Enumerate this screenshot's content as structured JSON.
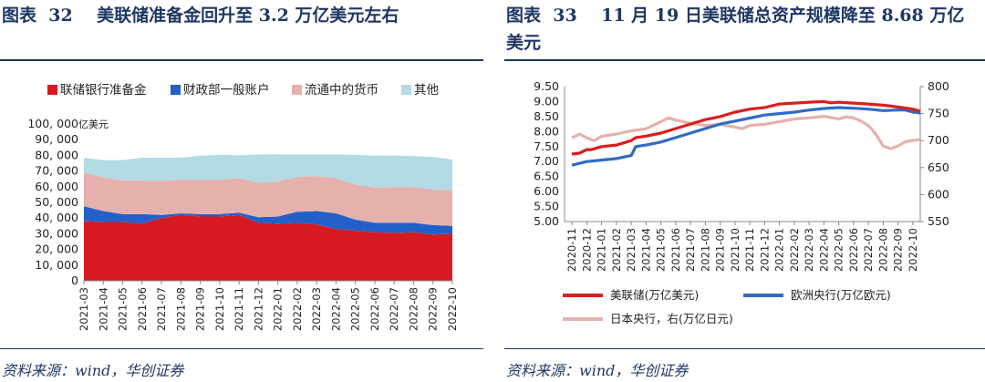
{
  "left": {
    "title": "图表  32    美联储准备金回升至 3.2 万亿美元左右",
    "source": "资料来源：wind，华创证券",
    "chart_data": {
      "type": "area",
      "stacked": true,
      "unit_label": "亿美元",
      "legend": [
        "联储银行准备金",
        "财政部一般账户",
        "流通中的货币",
        "其他"
      ],
      "colors": [
        "#d71a21",
        "#2361c8",
        "#e6b1ad",
        "#b2dbe3"
      ],
      "ylim": [
        0,
        100000
      ],
      "yticks": [
        "0",
        "10, 000",
        "20, 000",
        "30, 000",
        "40, 000",
        "50, 000",
        "60, 000",
        "70, 000",
        "80, 000",
        "90, 000",
        "100, 000"
      ],
      "categories": [
        "2021-03",
        "2021-04",
        "2021-05",
        "2021-06",
        "2021-07",
        "2021-08",
        "2021-09",
        "2021-10",
        "2021-11",
        "2021-12",
        "2022-01",
        "2022-02",
        "2022-03",
        "2022-04",
        "2022-05",
        "2022-06",
        "2022-07",
        "2022-08",
        "2022-09",
        "2022-10"
      ],
      "series": [
        {
          "name": "联储银行准备金",
          "values": [
            38000,
            37500,
            37500,
            36500,
            40000,
            42000,
            41000,
            41000,
            42000,
            37000,
            36500,
            37000,
            36000,
            33000,
            32000,
            31000,
            30500,
            31000,
            29500,
            30000
          ]
        },
        {
          "name": "财政部一般账户",
          "values": [
            9500,
            7000,
            5000,
            6000,
            2000,
            1000,
            1500,
            1500,
            1500,
            3500,
            4500,
            7000,
            8500,
            10000,
            7000,
            6000,
            6500,
            6000,
            6000,
            5000
          ]
        },
        {
          "name": "流通中的货币",
          "values": [
            21500,
            21500,
            21500,
            21500,
            21500,
            21700,
            21800,
            21900,
            22000,
            22100,
            22200,
            22300,
            22300,
            22400,
            22400,
            22500,
            22600,
            22600,
            22700,
            22800
          ]
        },
        {
          "name": "其他",
          "values": [
            9500,
            11000,
            13000,
            14500,
            15000,
            13800,
            15500,
            16000,
            14500,
            18000,
            17500,
            14200,
            13800,
            15200,
            18900,
            20400,
            20300,
            19900,
            20800,
            19500
          ]
        }
      ]
    }
  },
  "right": {
    "title": "图表  33    11 月 19 日美联储总资产规模降至 8.68 万亿美元",
    "source": "资料来源：wind，华创证券",
    "chart_data": {
      "type": "line",
      "y_left": {
        "ylim": [
          5.0,
          9.5
        ],
        "ticks": [
          "5.00",
          "5.50",
          "6.00",
          "6.50",
          "7.00",
          "7.50",
          "8.00",
          "8.50",
          "9.00",
          "9.50"
        ]
      },
      "y_right": {
        "ylim": [
          550,
          800
        ],
        "ticks": [
          "550",
          "600",
          "650",
          "700",
          "750",
          "800"
        ]
      },
      "categories": [
        "2020-11",
        "2020-12",
        "2021-01",
        "2021-02",
        "2021-03",
        "2021-04",
        "2021-05",
        "2021-06",
        "2021-07",
        "2021-08",
        "2021-09",
        "2021-10",
        "2021-11",
        "2021-12",
        "2022-01",
        "2022-02",
        "2022-03",
        "2022-04",
        "2022-05",
        "2022-06",
        "2022-07",
        "2022-08",
        "2022-09",
        "2022-10"
      ],
      "series": [
        {
          "name": "美联储(万亿美元)",
          "axis": "left",
          "color": "#d9201f",
          "x": [
            0,
            0.5,
            1,
            1.3,
            2,
            3,
            4,
            4.3,
            5,
            6,
            7,
            8,
            9,
            10,
            11,
            12,
            13,
            14,
            15,
            16,
            17,
            17.5,
            18,
            19,
            20,
            21,
            22,
            23,
            23.5
          ],
          "values": [
            7.25,
            7.28,
            7.4,
            7.4,
            7.5,
            7.55,
            7.7,
            7.8,
            7.85,
            7.95,
            8.1,
            8.25,
            8.4,
            8.5,
            8.65,
            8.75,
            8.8,
            8.92,
            8.95,
            8.98,
            9.0,
            8.96,
            8.98,
            8.95,
            8.92,
            8.88,
            8.82,
            8.75,
            8.68
          ]
        },
        {
          "name": "欧洲央行(万亿欧元)",
          "axis": "left",
          "color": "#2f6bc6",
          "x": [
            0,
            1,
            2,
            3,
            4,
            4.3,
            5,
            6,
            7,
            8,
            9,
            10,
            11,
            12,
            13,
            14,
            15,
            16,
            17,
            18,
            19,
            20,
            21,
            22,
            22.5,
            23,
            23.5
          ],
          "values": [
            6.88,
            7.0,
            7.05,
            7.1,
            7.2,
            7.5,
            7.55,
            7.65,
            7.8,
            7.95,
            8.1,
            8.25,
            8.35,
            8.45,
            8.55,
            8.6,
            8.65,
            8.72,
            8.77,
            8.8,
            8.78,
            8.75,
            8.7,
            8.72,
            8.72,
            8.65,
            8.62
          ]
        },
        {
          "name": "日本央行，右(万亿日元)",
          "axis": "right",
          "color": "#e6b1ad",
          "x": [
            0,
            0.5,
            1,
            1.5,
            2,
            3,
            4,
            5,
            6,
            6.5,
            7,
            8,
            9,
            10,
            11,
            11.5,
            12,
            13,
            14,
            15,
            16,
            17,
            18,
            18.5,
            19,
            19.5,
            20,
            20.5,
            21,
            21.5,
            22,
            22.5,
            23,
            23.5
          ],
          "values": [
            705,
            712,
            705,
            700,
            708,
            712,
            718,
            722,
            735,
            742,
            738,
            732,
            728,
            730,
            725,
            722,
            728,
            730,
            735,
            740,
            742,
            745,
            740,
            744,
            742,
            736,
            728,
            712,
            690,
            685,
            690,
            698,
            700,
            702
          ]
        }
      ]
    }
  }
}
